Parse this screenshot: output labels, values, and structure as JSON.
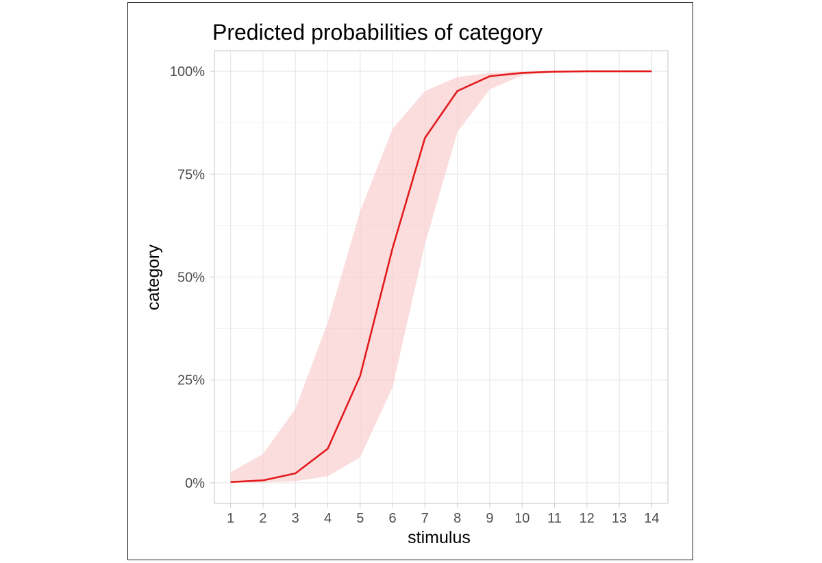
{
  "chart_data": {
    "type": "line",
    "title": "Predicted probabilities of category",
    "xlabel": "stimulus",
    "ylabel": "category",
    "x": [
      1,
      2,
      3,
      4,
      5,
      6,
      7,
      8,
      9,
      10,
      11,
      12,
      13,
      14
    ],
    "xlim": [
      0.5,
      14.5
    ],
    "ylim": [
      -0.05,
      1.05
    ],
    "x_ticks": [
      "1",
      "2",
      "3",
      "4",
      "5",
      "6",
      "7",
      "8",
      "9",
      "10",
      "11",
      "12",
      "13",
      "14"
    ],
    "y_ticks": [
      {
        "value": 0,
        "label": "0%"
      },
      {
        "value": 0.25,
        "label": "25%"
      },
      {
        "value": 0.5,
        "label": "50%"
      },
      {
        "value": 0.75,
        "label": "75%"
      },
      {
        "value": 1.0,
        "label": "100%"
      }
    ],
    "grid": true,
    "series": [
      {
        "values": [
          0.002,
          0.006,
          0.023,
          0.083,
          0.26,
          0.57,
          0.838,
          0.952,
          0.988,
          0.996,
          0.999,
          1.0,
          1.0,
          1.0
        ],
        "lower": [
          0.0,
          0.001,
          0.004,
          0.016,
          0.062,
          0.232,
          0.58,
          0.852,
          0.956,
          0.99,
          0.998,
          0.999,
          1.0,
          1.0
        ],
        "upper": [
          0.026,
          0.07,
          0.18,
          0.39,
          0.66,
          0.86,
          0.952,
          0.986,
          0.996,
          0.999,
          1.0,
          1.0,
          1.0,
          1.0
        ],
        "line_color": "#e31a1c",
        "band_color": "#f8c8c9"
      }
    ]
  }
}
